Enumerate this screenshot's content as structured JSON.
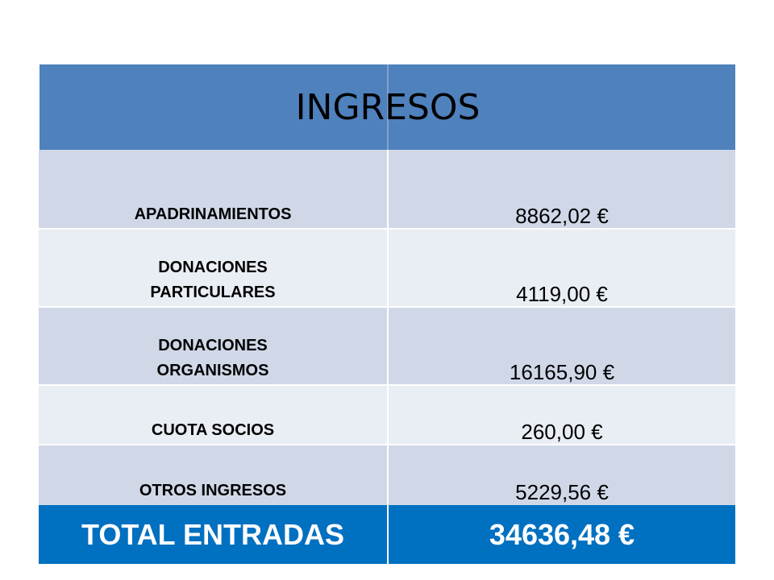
{
  "table": {
    "title": "INGRESOS",
    "rows": [
      {
        "label": "APADRINAMIENTOS",
        "value": "8862,02 €"
      },
      {
        "label": "DONACIONES PARTICULARES",
        "value": "4119,00 €"
      },
      {
        "label": "DONACIONES ORGANISMOS",
        "value": "16165,90 €"
      },
      {
        "label": "CUOTA SOCIOS",
        "value": "260,00 €"
      },
      {
        "label": "OTROS INGRESOS",
        "value": "5229,56 €"
      }
    ],
    "total": {
      "label": "TOTAL ENTRADAS",
      "value": "34636,48 €"
    }
  },
  "colors": {
    "header": "#4f81bd",
    "row_dark": "#d0d8e8",
    "row_light": "#e9edf4",
    "total": "#0070c0"
  }
}
